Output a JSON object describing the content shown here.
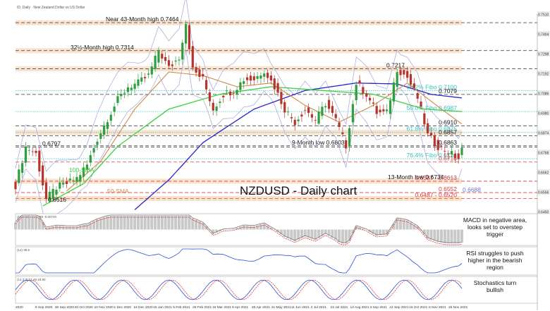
{
  "header": {
    "title": "ID, Daily · New Zealand Dollar vs US Dollar"
  },
  "colors": {
    "candle_up": "#2e9e3f",
    "candle_down": "#b8332b",
    "sma100": "#3ecf3e",
    "sma50": "#d2874a",
    "sma200": "#2626c8",
    "bollinger": "#a4a4d8",
    "zone": "#f5dcc2",
    "level": "#333333",
    "fibo": "#36c3c3",
    "support": "#d93a3a",
    "annotation": "#1b3aa8"
  },
  "chart_data": {
    "type": "candlestick",
    "title": "NZDUSD - Daily chart",
    "x_tick_labels": [
      "2020",
      "9 Sep 2020",
      "30 Sep 2020",
      "20 Oct 2020",
      "10 Nov 2020",
      "1 Dec 2020",
      "24 Dec 2020",
      "15 Jan 2021",
      "5 Feb 2021",
      "26 Feb 2021",
      "19 Mar 2021",
      "9 Apr 2021",
      "30 Apr 2021",
      "21 May 2021",
      "11 Jun 2021",
      "2 Jul 2021",
      "23 Jul 2021",
      "13 Aug 2021",
      "3 Sep 2021",
      "24 Sep 2021",
      "15 Oct 2021",
      "5 Nov 2021",
      "26 Nov 2021"
    ],
    "y_range": [
      0.645,
      0.751
    ],
    "price_path": [
      [
        0,
        0.659
      ],
      [
        3,
        0.6797
      ],
      [
        6,
        0.676
      ],
      [
        9,
        0.6516
      ],
      [
        12,
        0.658
      ],
      [
        15,
        0.66
      ],
      [
        18,
        0.663
      ],
      [
        21,
        0.67
      ],
      [
        24,
        0.684
      ],
      [
        27,
        0.695
      ],
      [
        30,
        0.705
      ],
      [
        33,
        0.712
      ],
      [
        36,
        0.714
      ],
      [
        39,
        0.718
      ],
      [
        42,
        0.7314
      ],
      [
        45,
        0.722
      ],
      [
        48,
        0.728
      ],
      [
        50,
        0.7464
      ],
      [
        52,
        0.721
      ],
      [
        55,
        0.716
      ],
      [
        58,
        0.7
      ],
      [
        61,
        0.708
      ],
      [
        64,
        0.71
      ],
      [
        67,
        0.716
      ],
      [
        70,
        0.716
      ],
      [
        73,
        0.721
      ],
      [
        76,
        0.712
      ],
      [
        79,
        0.7
      ],
      [
        82,
        0.693
      ],
      [
        85,
        0.7
      ],
      [
        88,
        0.694
      ],
      [
        91,
        0.703
      ],
      [
        94,
        0.694
      ],
      [
        97,
        0.6803
      ],
      [
        100,
        0.714
      ],
      [
        103,
        0.708
      ],
      [
        106,
        0.698
      ],
      [
        109,
        0.698
      ],
      [
        112,
        0.7217
      ],
      [
        115,
        0.717
      ],
      [
        118,
        0.706
      ],
      [
        121,
        0.686
      ],
      [
        124,
        0.68
      ],
      [
        127,
        0.677
      ],
      [
        130,
        0.6734
      ],
      [
        131,
        0.678
      ]
    ],
    "levels": [
      {
        "price": 0.7464,
        "label": "Near 43-Month high 0.7464",
        "style": "dashed",
        "zone": true
      },
      {
        "price": 0.7314,
        "label": "32½-Month high 0.7314",
        "style": "dashed",
        "zone": true
      },
      {
        "price": 0.7217,
        "label": "0.7217",
        "style": "dashed",
        "zone": true
      },
      {
        "price": 0.71,
        "label": "38.2% Fibo 0.7100",
        "style": "fibo"
      },
      {
        "price": 0.7079,
        "label": "0.7079",
        "style": "dashed"
      },
      {
        "price": 0.6987,
        "label": "50.0% Fibo 0.6987",
        "style": "fibo"
      },
      {
        "price": 0.691,
        "label": "0.6910",
        "style": "dashed"
      },
      {
        "price": 0.6875,
        "label": "61.8% Fibo 0.6875",
        "style": "fibo",
        "zone": true
      },
      {
        "price": 0.6857,
        "label": "0.6857",
        "style": "dashed"
      },
      {
        "price": 0.6803,
        "label": "9-Month low 0.6803",
        "style": "dashed"
      },
      {
        "price": 0.6797,
        "label": "0.6797",
        "style": "dashed"
      },
      {
        "price": 0.6734,
        "label": "76.4% Fibo 0.6734",
        "style": "fibo"
      },
      {
        "price": 0.6716,
        "label": "0.6716",
        "style": "support"
      },
      {
        "price": 0.6613,
        "label": "0.6587 - 0.6613",
        "style": "support",
        "zone": true
      },
      {
        "price": 0.6552,
        "label": "0.6552",
        "style": "support"
      },
      {
        "price": 0.652,
        "label": "0.6487 - 0.6520",
        "style": "support",
        "zone": true
      }
    ],
    "annotations": [
      "13-Month low 0.6734",
      "0.6688",
      "0.6516",
      "0.6803",
      "100-SMA",
      "50-SMA",
      "200-SMA",
      "0.6863"
    ],
    "sma_200_path": [
      [
        35,
        0.646
      ],
      [
        45,
        0.662
      ],
      [
        55,
        0.682
      ],
      [
        70,
        0.7
      ],
      [
        85,
        0.71
      ],
      [
        100,
        0.714
      ],
      [
        112,
        0.7135
      ],
      [
        122,
        0.7079
      ],
      [
        131,
        0.706
      ]
    ],
    "sma_100_path": [
      [
        8,
        0.648
      ],
      [
        20,
        0.66
      ],
      [
        30,
        0.68
      ],
      [
        45,
        0.7
      ],
      [
        60,
        0.708
      ],
      [
        75,
        0.712
      ],
      [
        90,
        0.71
      ],
      [
        105,
        0.708
      ],
      [
        120,
        0.7
      ],
      [
        131,
        0.6987
      ]
    ],
    "sma_50_path": [
      [
        15,
        0.656
      ],
      [
        25,
        0.672
      ],
      [
        35,
        0.7
      ],
      [
        45,
        0.72
      ],
      [
        55,
        0.718
      ],
      [
        65,
        0.712
      ],
      [
        75,
        0.714
      ],
      [
        85,
        0.702
      ],
      [
        95,
        0.693
      ],
      [
        105,
        0.702
      ],
      [
        115,
        0.714
      ],
      [
        125,
        0.7
      ],
      [
        131,
        0.692
      ]
    ],
    "subpanels": [
      {
        "name": "MACD",
        "header": "(12,26,9) -0.00768 -0.00720",
        "note": "MACD in negative area, looks set to overstep trigger"
      },
      {
        "name": "RSI",
        "header": "(14) 38.5",
        "note": "RSI struggles to push higher in the bearish region"
      },
      {
        "name": "Stochastics",
        "header": "(14,3,3) 21.48 18.80",
        "note": "Stochastics turn bullish"
      }
    ]
  }
}
